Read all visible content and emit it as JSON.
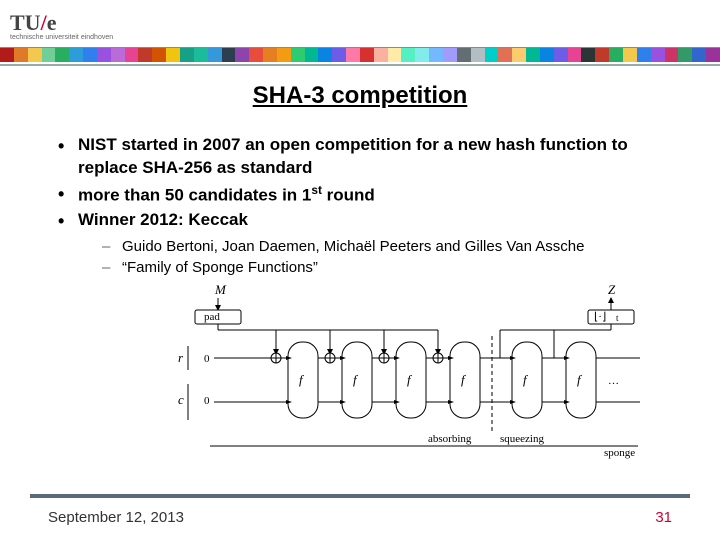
{
  "header": {
    "logo_main": "TU",
    "logo_tail": "e",
    "logo_sub": "technische universiteit eindhoven"
  },
  "stripe_colors": [
    "#b31b1b",
    "#e07a28",
    "#f2c94c",
    "#6fcf97",
    "#27ae60",
    "#2d9cdb",
    "#2f80ed",
    "#9b51e0",
    "#bb6bd9",
    "#e84393",
    "#c0392b",
    "#d35400",
    "#f1c40f",
    "#16a085",
    "#1abc9c",
    "#3498db",
    "#2c3e50",
    "#8e44ad",
    "#e74c3c",
    "#e67e22",
    "#f39c12",
    "#2ecc71",
    "#00b894",
    "#0984e3",
    "#6c5ce7",
    "#fd79a8",
    "#d63031",
    "#fab1a0",
    "#ffeaa7",
    "#55efc4",
    "#81ecec",
    "#74b9ff",
    "#a29bfe",
    "#636e72",
    "#b2bec3",
    "#00cec9",
    "#e17055",
    "#fdcb6e",
    "#00b894",
    "#0984e3",
    "#6c5ce7",
    "#e84393",
    "#2d3436",
    "#c0392b",
    "#27ae60",
    "#f2c94c",
    "#2f80ed",
    "#9b51e0",
    "#cc3366",
    "#339966",
    "#3366cc",
    "#993399"
  ],
  "title": "SHA-3 competition",
  "bullets": {
    "b1": "NIST started in 2007 an open competition for a new hash function to replace SHA-256 as standard",
    "b2_pre": "more than 50 candidates in 1",
    "b2_sup": "st",
    "b2_post": " round",
    "b3": "Winner 2012: Keccak"
  },
  "sub": {
    "s1": "Guido Bertoni, Joan Daemen, Michaël Peeters and Gilles Van Assche",
    "s2": "“Family of Sponge Functions”"
  },
  "diagram": {
    "M": "M",
    "Z": "Z",
    "pad": "pad",
    "trunc_pre": "⌊·⌋",
    "trunc_t": "t",
    "r": "r",
    "c": "c",
    "zero": "0",
    "f": "f",
    "absorbing": "absorbing",
    "squeezing": "squeezing",
    "caption": "sponge"
  },
  "footer": {
    "date": "September 12, 2013",
    "page": "31"
  }
}
